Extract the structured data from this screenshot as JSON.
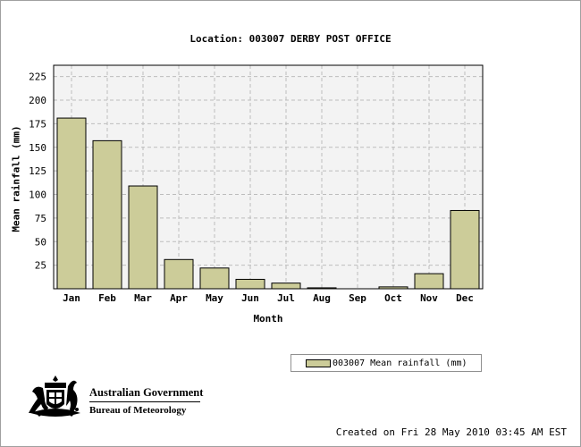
{
  "chart_data": {
    "type": "bar",
    "title": "Location: 003007 DERBY POST OFFICE",
    "xlabel": "Month",
    "ylabel": "Mean rainfall (mm)",
    "categories": [
      "Jan",
      "Feb",
      "Mar",
      "Apr",
      "May",
      "Jun",
      "Jul",
      "Aug",
      "Sep",
      "Oct",
      "Nov",
      "Dec"
    ],
    "series": [
      {
        "name": "003007 Mean rainfall (mm)",
        "values": [
          181,
          157,
          109,
          31,
          22,
          10,
          6,
          1,
          0,
          2,
          16,
          83
        ]
      }
    ],
    "ylim": [
      0,
      237
    ],
    "yticks": [
      25,
      50,
      75,
      100,
      125,
      150,
      175,
      200,
      225
    ],
    "grid": true,
    "legend_position": "bottom-right",
    "colors": {
      "bar_fill": "#cccc99",
      "plot_background": "#f3f3f3",
      "grid": "#bdbdbd"
    }
  },
  "logo": {
    "line1": "Australian Government",
    "line2": "Bureau of Meteorology",
    "emblem": "coat-of-arms-icon"
  },
  "footer": {
    "created": "Created on Fri 28 May 2010 03:45 AM EST"
  }
}
